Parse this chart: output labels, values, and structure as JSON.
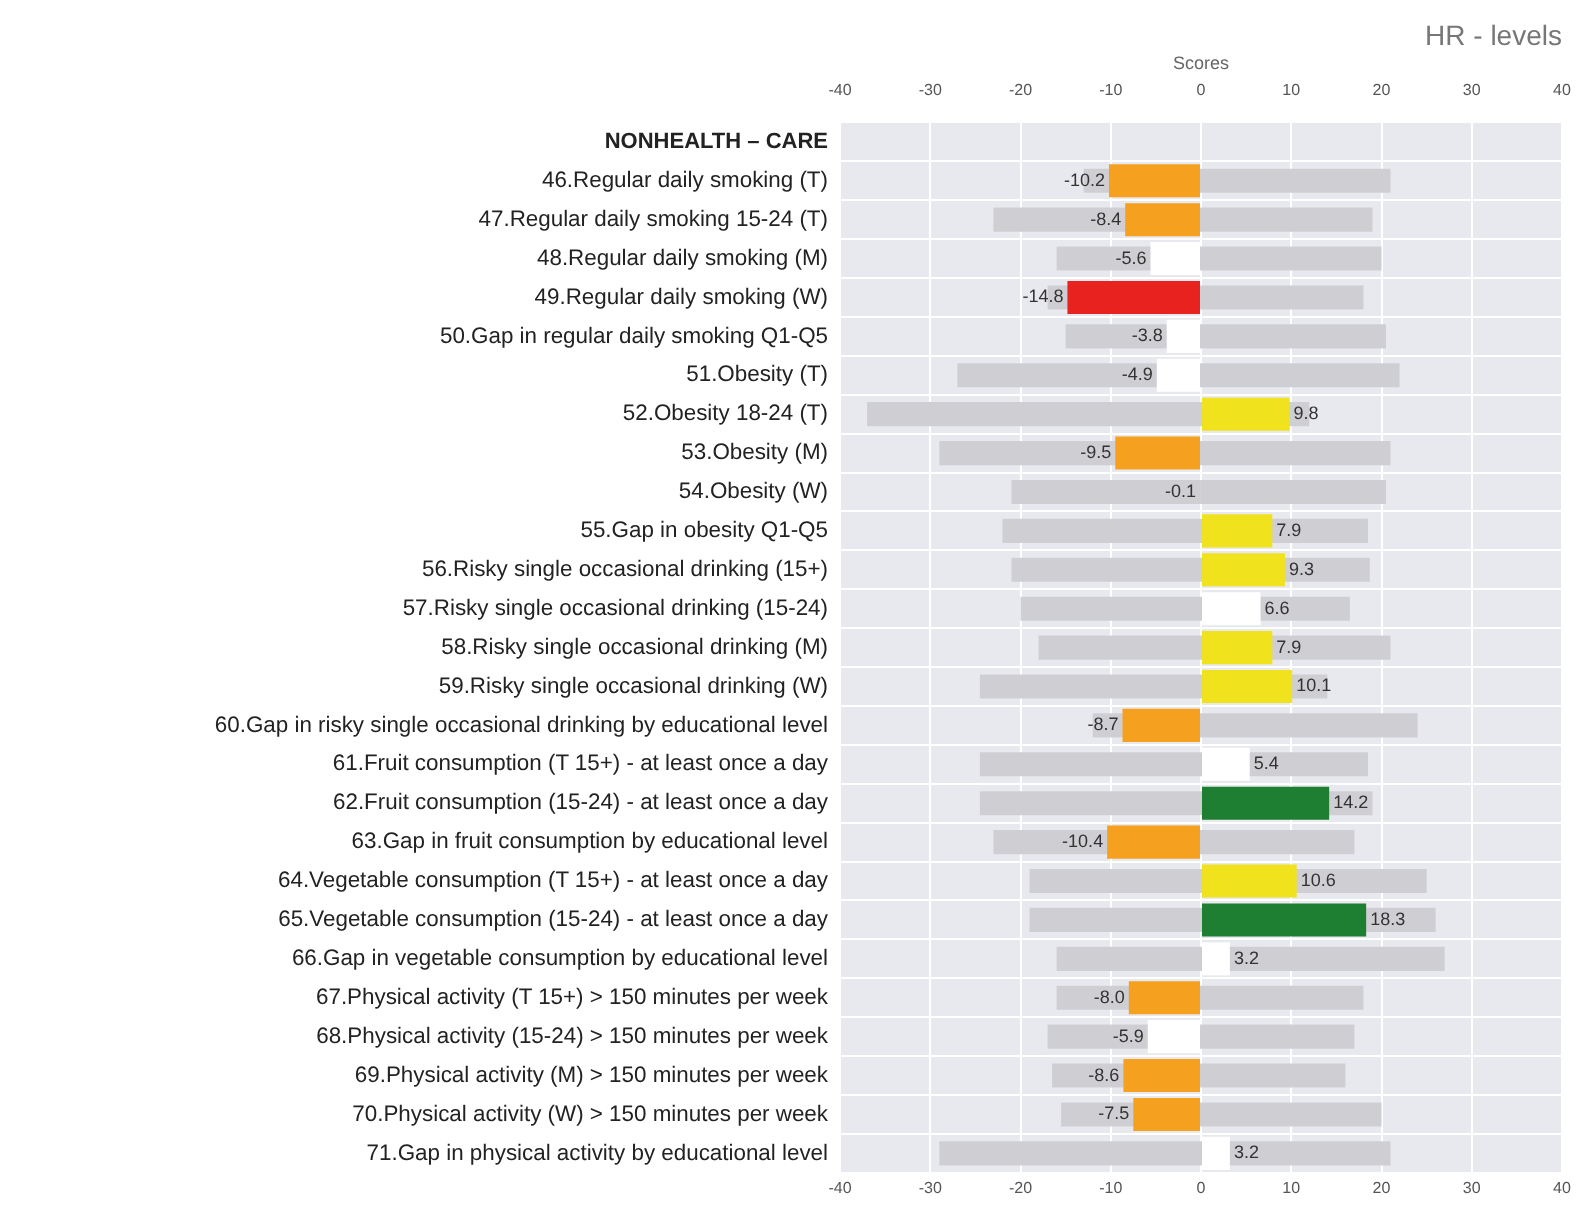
{
  "chart_data": {
    "type": "bar",
    "orientation": "horizontal",
    "title": "HR - levels",
    "x2label": "Scores",
    "categories": [
      "NONHEALTH – CARE",
      "46.Regular daily smoking (T)",
      "47.Regular daily smoking 15-24 (T)",
      "48.Regular daily smoking (M)",
      "49.Regular daily smoking (W)",
      "50.Gap in regular daily smoking Q1-Q5",
      "51.Obesity (T)",
      "52.Obesity 18-24 (T)",
      "53.Obesity (M)",
      "54.Obesity (W)",
      "55.Gap in obesity Q1-Q5",
      "56.Risky single occasional drinking (15+)",
      "57.Risky single occasional drinking (15-24)",
      "58.Risky single occasional drinking (M)",
      "59.Risky single occasional drinking (W)",
      "60.Gap in risky single occasional drinking by educational level",
      "61.Fruit consumption (T 15+) - at least once a day",
      "62.Fruit consumption (15-24) - at least once a day",
      "63.Gap in fruit consumption by educational level",
      "64.Vegetable consumption (T 15+) - at least once a day",
      "65.Vegetable consumption (15-24) - at least once a day",
      "66.Gap in vegetable consumption by educational level",
      "67.Physical activity (T 15+) > 150 minutes per week",
      "68.Physical activity (15-24) > 150 minutes per week",
      "69.Physical activity (M) > 150 minutes per week",
      "70.Physical activity (W) > 150 minutes per week",
      "71.Gap in physical activity by educational level"
    ],
    "series": [
      {
        "color": "#cfcfd3",
        "base": [
          null,
          -13,
          -23,
          -16,
          -17,
          -15,
          -27,
          -37,
          -29,
          -21,
          -22,
          -21,
          -20,
          -18,
          -24.5,
          -12,
          -24.5,
          -24.5,
          -23,
          -19,
          -19,
          -16,
          -16,
          -17,
          -16.5,
          -15.5,
          -29
        ],
        "values": [
          null,
          34,
          42,
          36,
          35,
          35.5,
          49,
          49,
          50,
          41.5,
          40.5,
          39.7,
          36.5,
          39,
          38.5,
          36,
          43,
          43.5,
          40,
          44,
          45,
          43,
          34,
          34,
          32.5,
          35.5,
          50
        ]
      },
      {
        "colors": [
          null,
          "#f5a11f",
          "#f5a11f",
          "#ffffff",
          "#e8221f",
          "#ffffff",
          "#ffffff",
          "#f0e21c",
          "#f5a11f",
          "#ffffff",
          "#f0e21c",
          "#f0e21c",
          "#ffffff",
          "#f0e21c",
          "#f0e21c",
          "#f5a11f",
          "#ffffff",
          "#1e7f33",
          "#f5a11f",
          "#f0e21c",
          "#1e7f33",
          "#ffffff",
          "#f5a11f",
          "#ffffff",
          "#f5a11f",
          "#f5a11f",
          "#ffffff"
        ],
        "values": [
          null,
          -10.2,
          -8.4,
          -5.6,
          -14.8,
          -3.8,
          -4.9,
          9.8,
          -9.5,
          -0.1,
          7.9,
          9.3,
          6.6,
          7.9,
          10.1,
          -8.7,
          5.4,
          14.2,
          -10.4,
          10.6,
          18.3,
          3.2,
          -8.0,
          -5.9,
          -8.6,
          -7.5,
          3.2
        ],
        "value_labels": [
          null,
          "-10.2",
          "-8.4",
          "-5.6",
          "-14.8",
          "-3.8",
          "-4.9",
          "9.8",
          "-9.5",
          "-0.1",
          "7.9",
          "9.3",
          "6.6",
          "7.9",
          "10.1",
          "-8.7",
          "5.4",
          "14.2",
          "-10.4",
          "10.6",
          "18.3",
          "3.2",
          "-8.0",
          "-5.9",
          "-8.6",
          "-7.5",
          "3.2"
        ]
      }
    ],
    "xlim": [
      -40,
      40
    ],
    "xticks": [
      -40,
      -30,
      -20,
      -10,
      0,
      10,
      20,
      30,
      40
    ],
    "x2lim": [
      -40,
      40
    ],
    "x2ticks": [
      -40,
      -30,
      -20,
      -10,
      0,
      10,
      20,
      30,
      40
    ],
    "grid": true,
    "legend": false
  }
}
